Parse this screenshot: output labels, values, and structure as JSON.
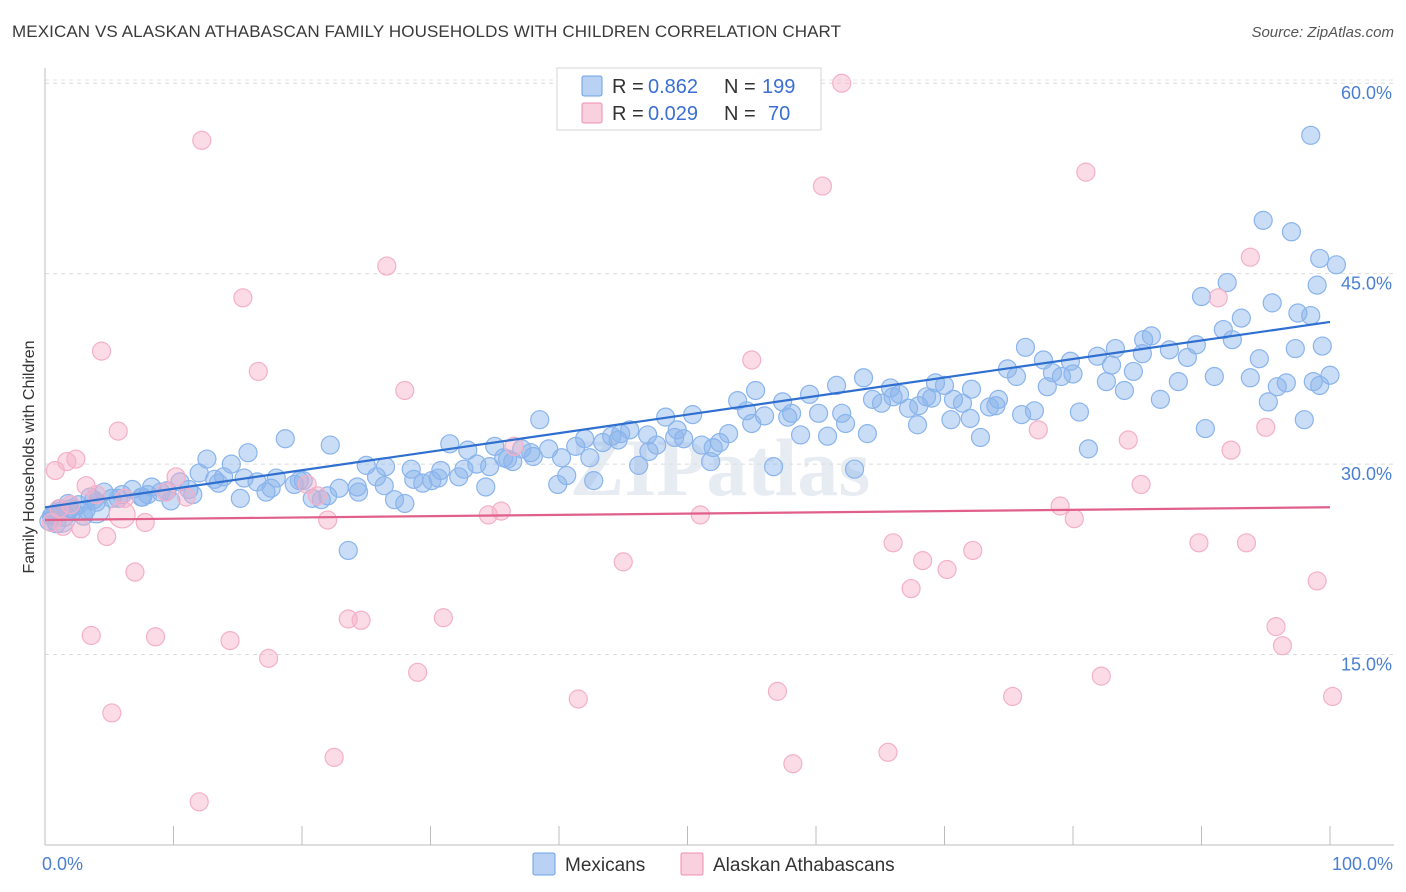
{
  "title": "MEXICAN VS ALASKAN ATHABASCAN FAMILY HOUSEHOLDS WITH CHILDREN CORRELATION CHART",
  "source": "Source: ZipAtlas.com",
  "watermark": "ZIPatlas",
  "chart_data": {
    "type": "scatter",
    "ylabel": "Family Households with Children",
    "xlim": [
      0,
      100
    ],
    "ylim": [
      0,
      61.2
    ],
    "x_tick_labels": [
      "0.0%",
      "100.0%"
    ],
    "y_ticks": [
      15,
      30,
      45,
      60
    ],
    "y_tick_labels": [
      "15.0%",
      "30.0%",
      "45.0%",
      "60.0%"
    ],
    "grid": "horizontal dashed",
    "legend_position": "top-center",
    "stats": [
      {
        "r_label": "R =",
        "r": "0.862",
        "n_label": "N =",
        "n": "199",
        "color": "#6ea0e6"
      },
      {
        "r_label": "R =",
        "r": "0.029",
        "n_label": "N =",
        "n": "70",
        "color": "#f08cb0"
      }
    ],
    "series": [
      {
        "name": "Mexicans",
        "color": "#8ab4ec",
        "line_color": "#2f6fd0",
        "trend": [
          [
            0,
            26.6
          ],
          [
            100,
            41.2
          ]
        ],
        "points": [
          [
            0.3,
            25.5
          ],
          [
            0.6,
            26.0
          ],
          [
            0.9,
            25.3
          ],
          [
            1.2,
            26.5
          ],
          [
            1.5,
            25.8
          ],
          [
            1.8,
            26.9
          ],
          [
            2.2,
            26.3
          ],
          [
            2.6,
            26.8
          ],
          [
            3.0,
            25.9
          ],
          [
            3.5,
            27.4
          ],
          [
            4.0,
            27.0
          ],
          [
            4.6,
            27.8
          ],
          [
            5.2,
            27.3
          ],
          [
            6.0,
            27.6
          ],
          [
            6.8,
            28.0
          ],
          [
            7.5,
            27.4
          ],
          [
            8.3,
            28.2
          ],
          [
            9.0,
            27.8
          ],
          [
            9.8,
            27.1
          ],
          [
            10.5,
            28.6
          ],
          [
            11.2,
            28.0
          ],
          [
            12.0,
            29.3
          ],
          [
            12.6,
            30.4
          ],
          [
            13.2,
            28.8
          ],
          [
            13.9,
            29.0
          ],
          [
            14.5,
            30.0
          ],
          [
            15.2,
            27.3
          ],
          [
            15.8,
            30.9
          ],
          [
            16.5,
            28.6
          ],
          [
            17.2,
            27.8
          ],
          [
            18.0,
            28.9
          ],
          [
            18.7,
            32.0
          ],
          [
            19.4,
            28.4
          ],
          [
            20.1,
            28.7
          ],
          [
            20.8,
            27.3
          ],
          [
            21.5,
            27.2
          ],
          [
            22.2,
            31.5
          ],
          [
            22.9,
            28.1
          ],
          [
            23.6,
            23.2
          ],
          [
            24.3,
            28.2
          ],
          [
            25.0,
            29.9
          ],
          [
            25.8,
            29.0
          ],
          [
            26.5,
            29.8
          ],
          [
            27.2,
            27.2
          ],
          [
            28.0,
            26.9
          ],
          [
            28.7,
            28.8
          ],
          [
            29.4,
            28.5
          ],
          [
            30.1,
            28.7
          ],
          [
            30.8,
            29.5
          ],
          [
            31.5,
            31.6
          ],
          [
            32.2,
            29.0
          ],
          [
            32.9,
            31.1
          ],
          [
            33.6,
            30.0
          ],
          [
            34.3,
            28.2
          ],
          [
            35.0,
            31.4
          ],
          [
            35.7,
            30.5
          ],
          [
            36.4,
            30.2
          ],
          [
            37.1,
            31.2
          ],
          [
            37.8,
            30.9
          ],
          [
            38.5,
            33.5
          ],
          [
            39.2,
            31.2
          ],
          [
            39.9,
            28.4
          ],
          [
            40.6,
            29.1
          ],
          [
            41.3,
            31.4
          ],
          [
            42.0,
            32.0
          ],
          [
            42.7,
            28.7
          ],
          [
            43.4,
            31.7
          ],
          [
            44.1,
            32.2
          ],
          [
            44.8,
            32.4
          ],
          [
            45.5,
            32.7
          ],
          [
            46.2,
            29.9
          ],
          [
            46.9,
            32.3
          ],
          [
            47.6,
            31.5
          ],
          [
            48.3,
            33.7
          ],
          [
            49.0,
            32.1
          ],
          [
            49.7,
            32.0
          ],
          [
            50.4,
            33.9
          ],
          [
            51.1,
            31.5
          ],
          [
            51.8,
            30.2
          ],
          [
            52.5,
            31.7
          ],
          [
            53.2,
            32.4
          ],
          [
            53.9,
            35.0
          ],
          [
            54.6,
            34.2
          ],
          [
            55.3,
            35.8
          ],
          [
            56.0,
            33.8
          ],
          [
            56.7,
            29.8
          ],
          [
            57.4,
            34.9
          ],
          [
            58.1,
            34.0
          ],
          [
            58.8,
            32.3
          ],
          [
            59.5,
            35.5
          ],
          [
            60.2,
            34.0
          ],
          [
            60.9,
            32.2
          ],
          [
            61.6,
            36.2
          ],
          [
            62.3,
            33.2
          ],
          [
            63.0,
            29.6
          ],
          [
            63.7,
            36.8
          ],
          [
            64.4,
            35.1
          ],
          [
            65.1,
            34.8
          ],
          [
            65.8,
            36.0
          ],
          [
            66.5,
            35.5
          ],
          [
            67.2,
            34.4
          ],
          [
            67.9,
            33.1
          ],
          [
            68.6,
            35.3
          ],
          [
            69.3,
            36.4
          ],
          [
            70.0,
            36.2
          ],
          [
            70.7,
            35.1
          ],
          [
            71.4,
            34.8
          ],
          [
            72.1,
            35.9
          ],
          [
            72.8,
            32.1
          ],
          [
            73.5,
            34.5
          ],
          [
            74.2,
            35.1
          ],
          [
            74.9,
            37.5
          ],
          [
            75.6,
            36.9
          ],
          [
            76.3,
            39.2
          ],
          [
            77.0,
            34.2
          ],
          [
            77.7,
            38.2
          ],
          [
            78.4,
            37.2
          ],
          [
            79.1,
            36.9
          ],
          [
            79.8,
            38.1
          ],
          [
            80.5,
            34.1
          ],
          [
            81.2,
            31.2
          ],
          [
            81.9,
            38.5
          ],
          [
            82.6,
            36.5
          ],
          [
            83.3,
            39.1
          ],
          [
            84.0,
            35.8
          ],
          [
            84.7,
            37.3
          ],
          [
            85.4,
            38.7
          ],
          [
            86.1,
            40.1
          ],
          [
            86.8,
            35.1
          ],
          [
            87.5,
            39.0
          ],
          [
            88.2,
            36.5
          ],
          [
            88.9,
            38.4
          ],
          [
            89.6,
            39.4
          ],
          [
            90.3,
            32.8
          ],
          [
            91.0,
            36.9
          ],
          [
            91.7,
            40.6
          ],
          [
            92.4,
            39.8
          ],
          [
            93.1,
            41.5
          ],
          [
            93.8,
            36.8
          ],
          [
            94.5,
            38.3
          ],
          [
            95.2,
            34.9
          ],
          [
            95.9,
            36.1
          ],
          [
            96.6,
            36.4
          ],
          [
            97.3,
            39.1
          ],
          [
            98.0,
            33.5
          ],
          [
            98.7,
            36.5
          ],
          [
            99.4,
            39.3
          ],
          [
            100.0,
            37.0
          ],
          [
            99.0,
            44.1
          ],
          [
            95.5,
            42.7
          ],
          [
            97.5,
            41.9
          ],
          [
            99.2,
            36.2
          ],
          [
            98.5,
            41.7
          ],
          [
            92.0,
            44.3
          ],
          [
            90.0,
            43.2
          ],
          [
            85.5,
            39.8
          ],
          [
            83.0,
            37.8
          ],
          [
            80.0,
            37.1
          ],
          [
            78.0,
            36.1
          ],
          [
            76.0,
            33.9
          ],
          [
            74.0,
            34.6
          ],
          [
            72.0,
            33.6
          ],
          [
            70.5,
            33.5
          ],
          [
            69.0,
            35.2
          ],
          [
            68.0,
            34.6
          ],
          [
            66.0,
            35.3
          ],
          [
            64.0,
            32.4
          ],
          [
            62.0,
            34.0
          ],
          [
            57.8,
            33.7
          ],
          [
            55.0,
            33.2
          ],
          [
            52.0,
            31.3
          ],
          [
            49.2,
            32.7
          ],
          [
            47.0,
            31.0
          ],
          [
            44.6,
            31.9
          ],
          [
            42.4,
            30.5
          ],
          [
            40.2,
            30.5
          ],
          [
            38.0,
            30.6
          ],
          [
            36.0,
            30.4
          ],
          [
            34.6,
            29.8
          ],
          [
            32.6,
            29.6
          ],
          [
            30.6,
            28.9
          ],
          [
            28.5,
            29.6
          ],
          [
            26.4,
            28.3
          ],
          [
            24.4,
            27.8
          ],
          [
            22.0,
            27.5
          ],
          [
            19.8,
            28.7
          ],
          [
            17.6,
            28.1
          ],
          [
            15.5,
            28.9
          ],
          [
            13.5,
            28.5
          ],
          [
            11.5,
            27.6
          ],
          [
            9.5,
            27.9
          ],
          [
            7.6,
            27.4
          ],
          [
            5.7,
            27.3
          ],
          [
            3.8,
            27.2
          ],
          [
            2.0,
            26.5
          ],
          [
            1.0,
            26.1
          ],
          [
            0.5,
            25.9
          ],
          [
            3.2,
            26.4
          ],
          [
            8.0,
            27.6
          ],
          [
            94.8,
            49.2
          ],
          [
            97.0,
            48.3
          ],
          [
            99.2,
            46.2
          ],
          [
            100.5,
            45.7
          ],
          [
            98.5,
            55.9
          ]
        ]
      },
      {
        "name": "Alaskan Athabascans",
        "color": "#f4b0c8",
        "line_color": "#e0608a",
        "trend": [
          [
            0,
            25.6
          ],
          [
            100,
            26.6
          ]
        ],
        "points": [
          [
            0.5,
            25.4
          ],
          [
            0.8,
            29.5
          ],
          [
            1.1,
            26.5
          ],
          [
            1.4,
            25.1
          ],
          [
            1.7,
            30.2
          ],
          [
            2.0,
            26.8
          ],
          [
            2.4,
            30.4
          ],
          [
            2.8,
            24.9
          ],
          [
            3.2,
            28.3
          ],
          [
            3.6,
            16.5
          ],
          [
            4.0,
            27.6
          ],
          [
            4.4,
            38.9
          ],
          [
            4.8,
            24.3
          ],
          [
            5.2,
            10.4
          ],
          [
            5.7,
            32.6
          ],
          [
            6.2,
            27.3
          ],
          [
            7.0,
            21.5
          ],
          [
            7.8,
            25.4
          ],
          [
            8.6,
            16.4
          ],
          [
            9.4,
            27.8
          ],
          [
            10.2,
            29.0
          ],
          [
            11.0,
            27.4
          ],
          [
            12.0,
            3.4
          ],
          [
            12.2,
            55.5
          ],
          [
            14.4,
            16.1
          ],
          [
            15.4,
            43.1
          ],
          [
            16.6,
            37.3
          ],
          [
            17.4,
            14.7
          ],
          [
            20.4,
            28.4
          ],
          [
            21.2,
            27.5
          ],
          [
            22.0,
            25.6
          ],
          [
            22.5,
            6.9
          ],
          [
            23.6,
            17.8
          ],
          [
            24.6,
            17.7
          ],
          [
            26.6,
            45.6
          ],
          [
            28.0,
            35.8
          ],
          [
            29.0,
            13.6
          ],
          [
            31.0,
            17.9
          ],
          [
            34.5,
            26.0
          ],
          [
            35.5,
            26.3
          ],
          [
            36.5,
            31.4
          ],
          [
            41.5,
            11.5
          ],
          [
            45.0,
            22.3
          ],
          [
            51.0,
            26.0
          ],
          [
            55.0,
            38.2
          ],
          [
            57.0,
            12.1
          ],
          [
            58.2,
            6.4
          ],
          [
            60.5,
            51.9
          ],
          [
            62.0,
            60.0
          ],
          [
            65.6,
            7.3
          ],
          [
            66.0,
            23.8
          ],
          [
            67.4,
            20.2
          ],
          [
            68.3,
            22.4
          ],
          [
            70.2,
            21.7
          ],
          [
            72.2,
            23.2
          ],
          [
            75.3,
            11.7
          ],
          [
            77.3,
            32.7
          ],
          [
            79.0,
            26.7
          ],
          [
            80.1,
            25.7
          ],
          [
            81.0,
            53.0
          ],
          [
            82.2,
            13.3
          ],
          [
            84.3,
            31.9
          ],
          [
            85.3,
            28.4
          ],
          [
            89.8,
            23.8
          ],
          [
            91.3,
            43.1
          ],
          [
            92.3,
            31.1
          ],
          [
            93.5,
            23.8
          ],
          [
            93.8,
            46.3
          ],
          [
            95.0,
            32.9
          ],
          [
            95.8,
            17.2
          ],
          [
            96.3,
            15.7
          ],
          [
            99.0,
            20.8
          ],
          [
            100.2,
            11.7
          ]
        ]
      }
    ],
    "bottom_legend": [
      "Mexicans",
      "Alaskan Athabascans"
    ]
  }
}
